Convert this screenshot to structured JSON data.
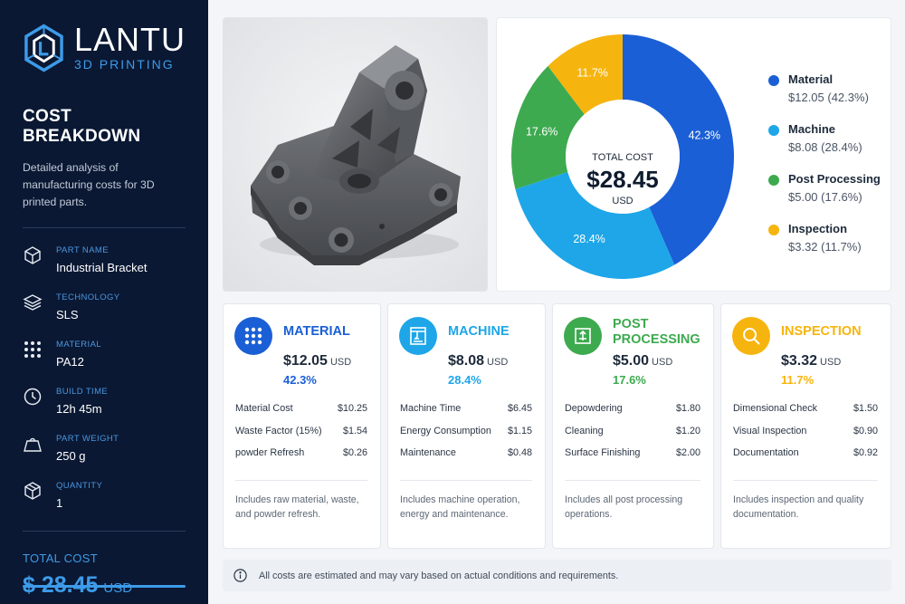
{
  "brand": {
    "name": "LANTU",
    "subtitle": "3D PRINTING"
  },
  "sidebar": {
    "title": "COST BREAKDOWN",
    "description": "Detailed analysis of manufacturing costs for 3D printed parts.",
    "specs": [
      {
        "icon": "cube-icon",
        "label": "PART NAME",
        "value": "Industrial Bracket"
      },
      {
        "icon": "layers-icon",
        "label": "TECHNOLOGY",
        "value": "SLS"
      },
      {
        "icon": "dots-grid-icon",
        "label": "MATERIAL",
        "value": "PA12"
      },
      {
        "icon": "clock-icon",
        "label": "BUILD TIME",
        "value": "12h 45m"
      },
      {
        "icon": "weight-icon",
        "label": "PART WEIGHT",
        "value": "250 g"
      },
      {
        "icon": "box-icon",
        "label": "QUANTITY",
        "value": "1"
      }
    ],
    "total_label": "TOTAL COST",
    "total_amount": "$ 28.45",
    "total_currency": "USD"
  },
  "chart_center": {
    "label": "TOTAL COST",
    "value": "$28.45",
    "currency": "USD"
  },
  "chart_data": {
    "type": "pie",
    "categories": [
      "Material",
      "Machine",
      "Post Processing",
      "Inspection"
    ],
    "values": [
      42.3,
      28.4,
      17.6,
      11.7
    ],
    "amounts": [
      "$12.05",
      "$8.08",
      "$5.00",
      "$3.32"
    ],
    "slice_labels": [
      "42.3%",
      "28.4%",
      "17.6%",
      "11.7%"
    ],
    "legend": [
      "$12.05 (42.3%)",
      "$8.08 (28.4%)",
      "$5.00 (17.6%)",
      "$3.32 (11.7%)"
    ],
    "colors": [
      "#1a5fd6",
      "#1ea6e8",
      "#3daa4f",
      "#f6b40e"
    ],
    "legend_position": "right"
  },
  "cards": [
    {
      "title": "MATERIAL",
      "amount": "$12.05",
      "currency": "USD",
      "percent": "42.3%",
      "color": "#1a5fd6",
      "icon": "dots-grid-icon",
      "rows": [
        {
          "label": "Material Cost",
          "value": "$10.25"
        },
        {
          "label": "Waste Factor (15%)",
          "value": "$1.54"
        },
        {
          "label": "powder Refresh",
          "value": "$0.26"
        }
      ],
      "note": "Includes raw material, waste, and powder refresh."
    },
    {
      "title": "MACHINE",
      "amount": "$8.08",
      "currency": "USD",
      "percent": "28.4%",
      "color": "#1ea6e8",
      "icon": "printer-icon",
      "rows": [
        {
          "label": "Machine Time",
          "value": "$6.45"
        },
        {
          "label": "Energy Consumption",
          "value": "$1.15"
        },
        {
          "label": "Maintenance",
          "value": "$0.48"
        }
      ],
      "note": "Includes machine operation, energy and maintenance."
    },
    {
      "title": "POST PROCESSING",
      "title_line1": "POST",
      "title_line2": "PROCESSING",
      "amount": "$5.00",
      "currency": "USD",
      "percent": "17.6%",
      "color": "#3daa4f",
      "icon": "finishing-icon",
      "rows": [
        {
          "label": "Depowdering",
          "value": "$1.80"
        },
        {
          "label": "Cleaning",
          "value": "$1.20"
        },
        {
          "label": "Surface Finishing",
          "value": "$2.00"
        }
      ],
      "note": "Includes all post processing operations."
    },
    {
      "title": "INSPECTION",
      "amount": "$3.32",
      "currency": "USD",
      "percent": "11.7%",
      "color": "#f6b40e",
      "icon": "magnifier-icon",
      "rows": [
        {
          "label": "Dimensional Check",
          "value": "$1.50"
        },
        {
          "label": "Visual Inspection",
          "value": "$0.90"
        },
        {
          "label": "Documentation",
          "value": "$0.92"
        }
      ],
      "note": "Includes inspection and quality documentation."
    }
  ],
  "footer_note": "All costs are estimated and may vary based on actual conditions and requirements."
}
